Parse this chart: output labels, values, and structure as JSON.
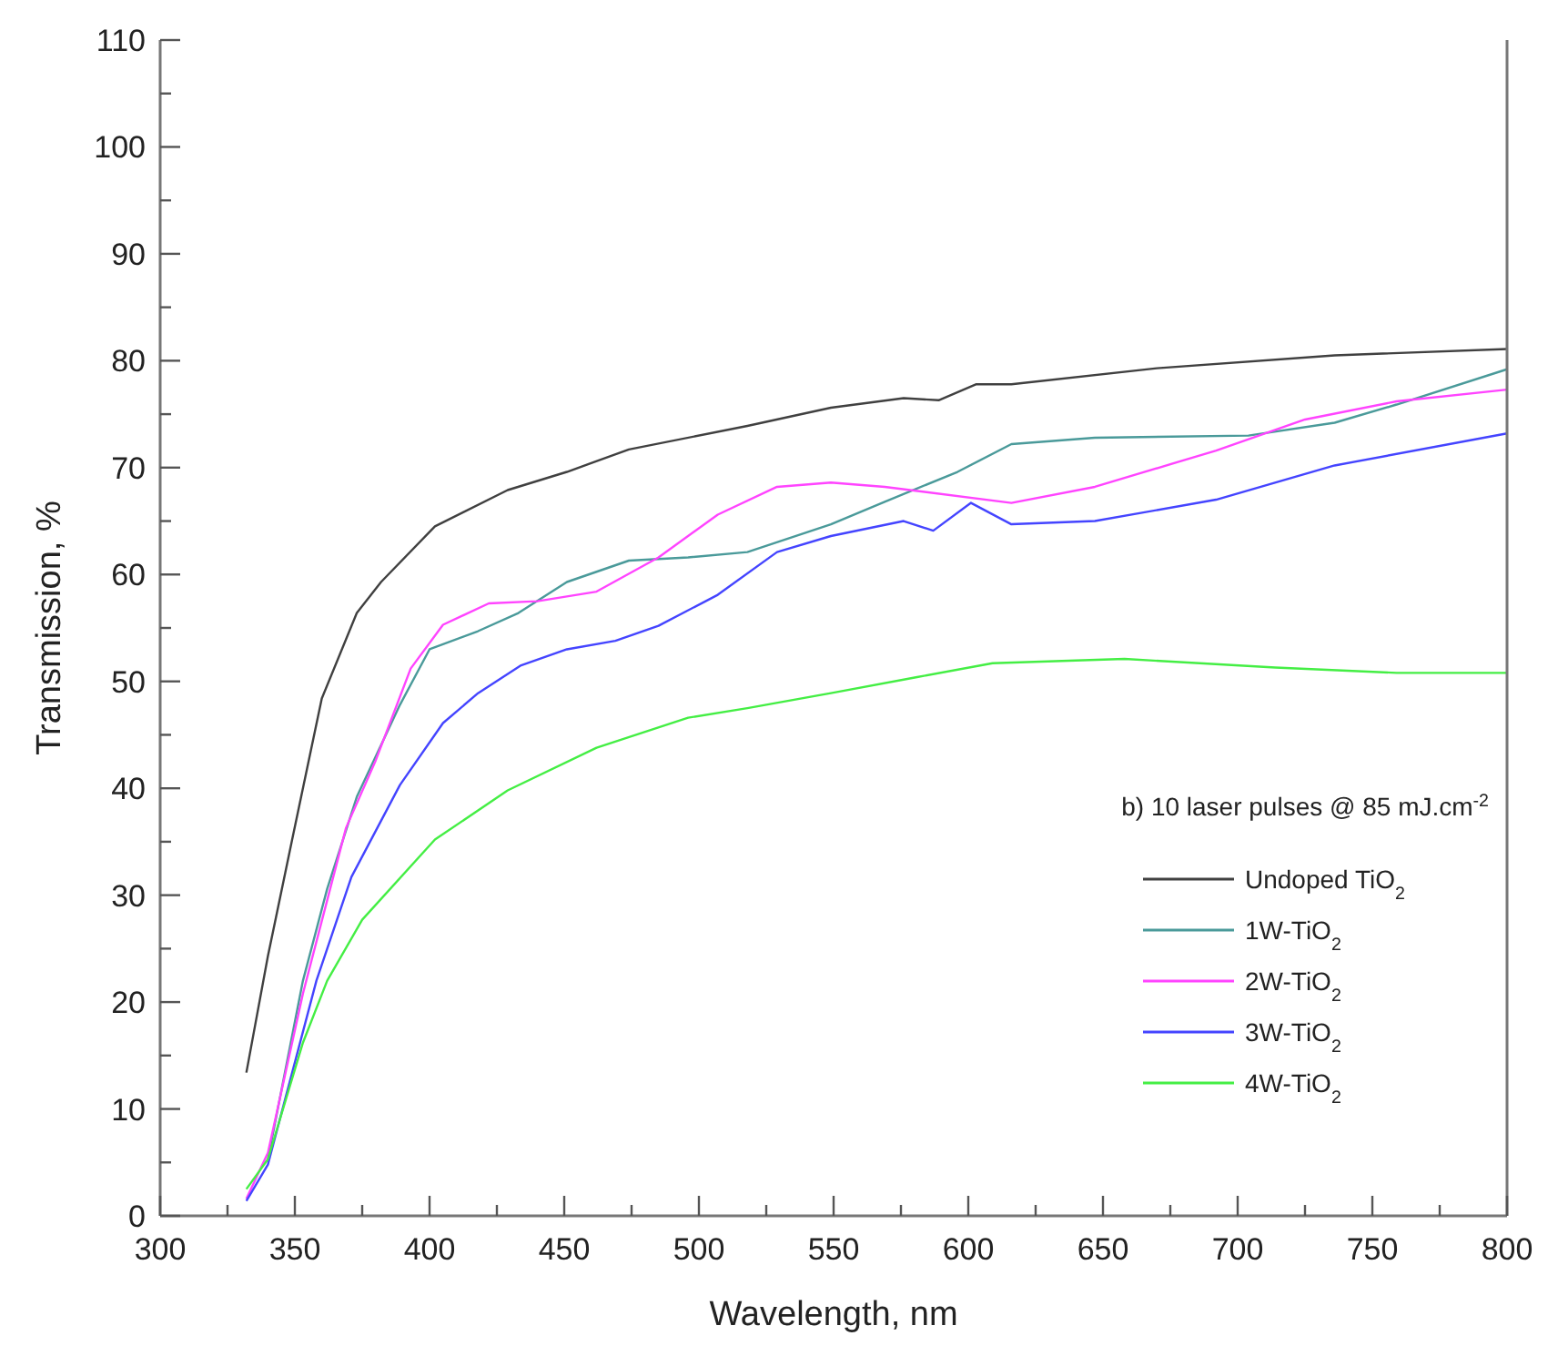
{
  "chart_data": {
    "type": "line",
    "xlabel": "Wavelength, nm",
    "ylabel": "Transmission, %",
    "annotations": [
      "b) 10 laser pulses @ 85 mJ.cm$^{-2}$"
    ],
    "xlim": [
      300,
      800
    ],
    "ylim": [
      0,
      110
    ],
    "xticks": [
      300,
      {
        "value": 325,
        "label": null
      },
      350,
      {
        "value": 375,
        "label": null
      },
      400,
      {
        "value": 425,
        "label": null
      },
      450,
      {
        "value": 475,
        "label": null
      },
      500,
      {
        "value": 525,
        "label": null
      },
      550,
      {
        "value": 575,
        "label": null
      },
      600,
      {
        "value": 625,
        "label": null
      },
      650,
      {
        "value": 675,
        "label": null
      },
      700,
      {
        "value": 725,
        "label": null
      },
      750,
      {
        "value": 775,
        "label": null
      },
      800
    ],
    "yticks": [
      0,
      {
        "value": 5,
        "label": null
      },
      10,
      {
        "value": 15,
        "label": null
      },
      20,
      {
        "value": 25,
        "label": null
      },
      30,
      {
        "value": 35,
        "label": null
      },
      40,
      {
        "value": 45,
        "label": null
      },
      50,
      {
        "value": 55,
        "label": null
      },
      60,
      {
        "value": 65,
        "label": null
      },
      70,
      {
        "value": 75,
        "label": null
      },
      80,
      {
        "value": 85,
        "label": null
      },
      90,
      {
        "value": 95,
        "label": null
      },
      100,
      {
        "value": 105,
        "label": null
      },
      110
    ],
    "grid": false,
    "legend": "bottom right",
    "marker": "none",
    "line_style": "solid",
    "series": [
      {
        "name": "Undoped TiO$_{2}$",
        "color": "#404040",
        "x": [
          332,
          340,
          349,
          360,
          373,
          382,
          402,
          429,
          451,
          474,
          518,
          549,
          576,
          589,
          603,
          616,
          670,
          736,
          800
        ],
        "values": [
          13.4,
          24.3,
          35.2,
          48.4,
          56.4,
          59.3,
          64.5,
          67.9,
          69.6,
          71.7,
          73.9,
          75.6,
          76.5,
          76.3,
          77.8,
          77.8,
          79.3,
          80.5,
          81.1
        ]
      },
      {
        "name": "1W-TiO$_{2}$",
        "color": "#4a9a9a",
        "x": [
          340,
          353,
          362,
          373,
          389,
          400,
          418,
          433,
          451,
          474,
          496,
          518,
          549,
          569,
          596,
          616,
          647,
          704,
          736,
          759,
          800
        ],
        "values": [
          5.3,
          22.0,
          30.6,
          39.2,
          47.8,
          53.0,
          54.7,
          56.4,
          59.3,
          61.3,
          61.6,
          62.1,
          64.7,
          66.8,
          69.6,
          72.2,
          72.8,
          73.0,
          74.2,
          75.9,
          79.2
        ]
      },
      {
        "name": "2W-TiO$_{2}$",
        "color": "#ff44ff",
        "x": [
          332,
          340,
          353,
          369,
          380,
          393,
          405,
          422,
          440,
          462,
          485,
          507,
          529,
          549,
          569,
          616,
          647,
          692,
          725,
          759,
          800
        ],
        "values": [
          1.6,
          5.9,
          20.8,
          36.3,
          42.6,
          51.2,
          55.3,
          57.3,
          57.5,
          58.4,
          61.6,
          65.6,
          68.2,
          68.6,
          68.2,
          66.7,
          68.2,
          71.6,
          74.5,
          76.2,
          77.3
        ]
      },
      {
        "name": "3W-TiO$_{2}$",
        "color": "#4444ff",
        "x": [
          332,
          340,
          358,
          371,
          389,
          405,
          418,
          434,
          451,
          469,
          485,
          507,
          529,
          549,
          576,
          587,
          601,
          616,
          647,
          692,
          736,
          800
        ],
        "values": [
          1.4,
          4.8,
          22.0,
          31.7,
          40.3,
          46.1,
          48.9,
          51.5,
          53.0,
          53.8,
          55.2,
          58.1,
          62.1,
          63.6,
          65.0,
          64.1,
          66.7,
          64.7,
          65.0,
          67.0,
          70.2,
          73.2
        ]
      },
      {
        "name": "4W-TiO$_{2}$",
        "color": "#44ee44",
        "x": [
          332,
          340,
          353,
          362,
          375,
          402,
          429,
          462,
          496,
          518,
          549,
          581,
          609,
          658,
          714,
          759,
          800
        ],
        "values": [
          2.5,
          5.3,
          16.2,
          22.0,
          27.7,
          35.2,
          39.8,
          43.8,
          46.6,
          47.5,
          48.9,
          50.4,
          51.7,
          52.1,
          51.3,
          50.8,
          50.8
        ]
      }
    ]
  }
}
